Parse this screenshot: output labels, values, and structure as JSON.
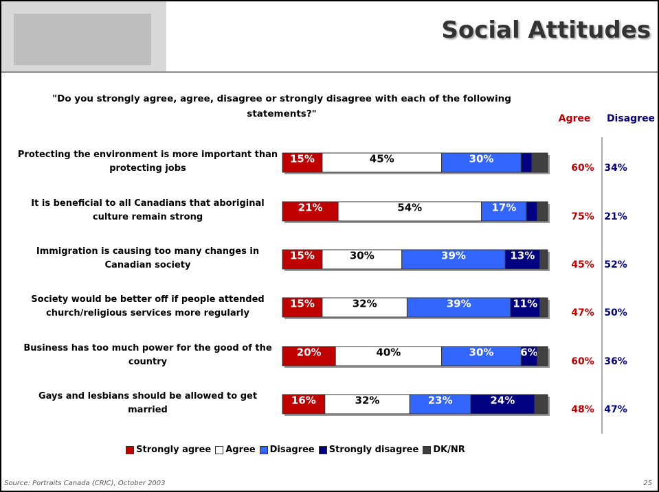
{
  "chart_data": {
    "type": "stacked-bar",
    "title": "Social Attitudes",
    "subtitle": "\"Do you strongly agree, agree, disagree or strongly disagree with each of the following statements?\"",
    "source": "Source: Portraits Canada (CRIC), October 2003",
    "page_number": "25",
    "orientation": "horizontal",
    "xlim": [
      0,
      100
    ],
    "categories": [
      "Protecting the environment is more important than protecting jobs",
      "It is beneficial to all Canadians that aboriginal culture remain strong",
      "Immigration is causing too many changes in Canadian society",
      "Society would be better off if people attended church/religious services more regularly",
      "Business has too much power for the good of the country",
      "Gays and lesbians should be allowed to get married"
    ],
    "series": [
      {
        "name": "Strongly agree",
        "color": "#c00000",
        "label_color": "#ffffff",
        "values": [
          15,
          21,
          15,
          15,
          20,
          16
        ],
        "value_labels": [
          "15%",
          "21%",
          "15%",
          "15%",
          "20%",
          "16%"
        ]
      },
      {
        "name": "Agree",
        "color": "#ffffff",
        "label_color": "#000000",
        "values": [
          45,
          54,
          30,
          32,
          40,
          32
        ],
        "value_labels": [
          "45%",
          "54%",
          "30%",
          "32%",
          "40%",
          "32%"
        ]
      },
      {
        "name": "Disagree",
        "color": "#3366ff",
        "label_color": "#ffffff",
        "values": [
          30,
          17,
          39,
          39,
          30,
          23
        ],
        "value_labels": [
          "30%",
          "17%",
          "39%",
          "39%",
          "30%",
          "23%"
        ]
      },
      {
        "name": "Strongly disagree",
        "color": "#000080",
        "label_color": "#ffffff",
        "values": [
          4,
          4,
          13,
          11,
          6,
          24
        ],
        "value_labels": [
          null,
          null,
          "13%",
          "11%",
          "6%",
          "24%"
        ]
      },
      {
        "name": "DK/NR",
        "color": "#404040",
        "label_color": "#ffffff",
        "values": [
          6,
          4,
          3,
          3,
          4,
          5
        ]
      }
    ],
    "totals": [
      {
        "name": "Agree",
        "color": "#c00000",
        "values": [
          60,
          75,
          45,
          47,
          60,
          48
        ],
        "value_labels": [
          "60%",
          "75%",
          "45%",
          "47%",
          "60%",
          "48%"
        ]
      },
      {
        "name": "Disagree",
        "color": "#000080",
        "values": [
          34,
          21,
          52,
          50,
          36,
          47
        ],
        "value_labels": [
          "34%",
          "21%",
          "52%",
          "50%",
          "36%",
          "47%"
        ]
      }
    ]
  }
}
